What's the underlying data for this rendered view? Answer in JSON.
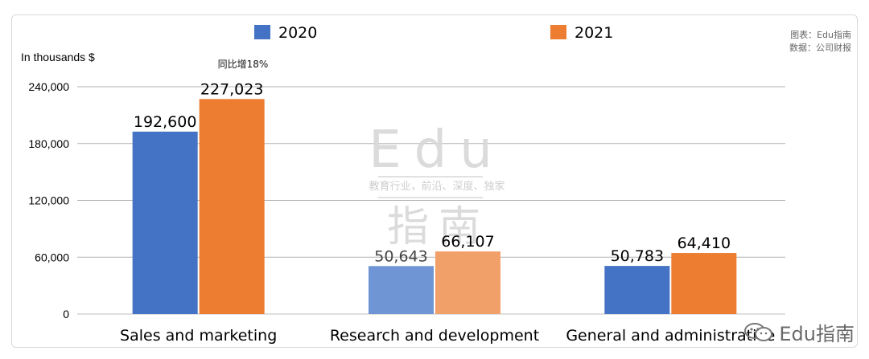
{
  "chart_data": {
    "type": "bar",
    "categories": [
      "Sales and marketing",
      "Research and development",
      "General and administrative"
    ],
    "series": [
      {
        "name": "2020",
        "values": [
          192600,
          50643,
          50783
        ],
        "labels": [
          "192,600",
          "50,643",
          "50,783"
        ],
        "color": "#4472c4"
      },
      {
        "name": "2021",
        "values": [
          227023,
          66107,
          64410
        ],
        "labels": [
          "227,023",
          "66,107",
          "64,410"
        ],
        "color": "#ed7d31"
      }
    ],
    "ylabel": "In thousands $",
    "ylim": [
      0,
      240000
    ],
    "yticks": [
      "0",
      "60,000",
      "120,000",
      "180,000",
      "240,000"
    ],
    "ytick_values": [
      0,
      60000,
      120000,
      180000,
      240000
    ],
    "annotation": "同比增18%",
    "grid": true,
    "legend_position": "top"
  },
  "source": {
    "line1": "图表：Edu指南",
    "line2": "数据：公司财报"
  },
  "watermark": {
    "big": "Edu",
    "sub": "教育行业，前沿、深度、独家",
    "zh": "指南"
  },
  "corner_brand": "Edu指南",
  "corner_icon": "wechat-icon"
}
